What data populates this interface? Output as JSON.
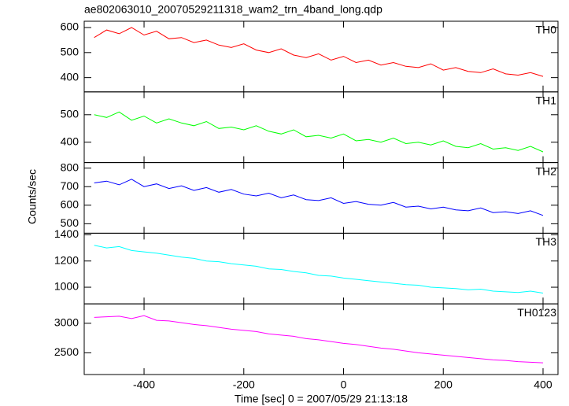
{
  "title": "ae802063010_20070529211318_wam2_trn_4band_long.qdp",
  "ylabel": "Counts/sec",
  "chart_data": [
    {
      "type": "line",
      "label": "TH0",
      "color": "#ff0000",
      "ylim": [
        343,
        625
      ],
      "yticks": [
        400,
        500,
        600
      ],
      "x": [
        -500,
        -475,
        -450,
        -425,
        -400,
        -375,
        -350,
        -325,
        -300,
        -275,
        -250,
        -225,
        -200,
        -175,
        -150,
        -125,
        -100,
        -75,
        -50,
        -25,
        0,
        25,
        50,
        75,
        100,
        125,
        150,
        175,
        200,
        225,
        250,
        275,
        300,
        325,
        350,
        375,
        400
      ],
      "values": [
        560,
        590,
        575,
        600,
        570,
        585,
        555,
        560,
        540,
        550,
        530,
        520,
        535,
        510,
        500,
        515,
        490,
        480,
        495,
        470,
        485,
        460,
        470,
        450,
        460,
        445,
        440,
        455,
        430,
        440,
        425,
        420,
        435,
        415,
        410,
        420,
        405
      ]
    },
    {
      "type": "line",
      "label": "TH1",
      "color": "#00ff00",
      "ylim": [
        326,
        583
      ],
      "yticks": [
        400,
        500
      ],
      "x": [
        -500,
        -475,
        -450,
        -425,
        -400,
        -375,
        -350,
        -325,
        -300,
        -275,
        -250,
        -225,
        -200,
        -175,
        -150,
        -125,
        -100,
        -75,
        -50,
        -25,
        0,
        25,
        50,
        75,
        100,
        125,
        150,
        175,
        200,
        225,
        250,
        275,
        300,
        325,
        350,
        375,
        400
      ],
      "values": [
        500,
        490,
        510,
        480,
        495,
        470,
        485,
        470,
        460,
        475,
        450,
        455,
        445,
        460,
        440,
        430,
        445,
        420,
        425,
        415,
        430,
        405,
        410,
        400,
        415,
        395,
        400,
        390,
        405,
        385,
        380,
        395,
        375,
        380,
        370,
        385,
        365
      ]
    },
    {
      "type": "line",
      "label": "TH2",
      "color": "#0000ff",
      "ylim": [
        449,
        830
      ],
      "yticks": [
        500,
        600,
        700,
        800
      ],
      "x": [
        -500,
        -475,
        -450,
        -425,
        -400,
        -375,
        -350,
        -325,
        -300,
        -275,
        -250,
        -225,
        -200,
        -175,
        -150,
        -125,
        -100,
        -75,
        -50,
        -25,
        0,
        25,
        50,
        75,
        100,
        125,
        150,
        175,
        200,
        225,
        250,
        275,
        300,
        325,
        350,
        375,
        400
      ],
      "values": [
        720,
        730,
        710,
        740,
        700,
        715,
        690,
        705,
        680,
        695,
        670,
        685,
        660,
        650,
        665,
        640,
        655,
        630,
        625,
        640,
        610,
        620,
        605,
        600,
        615,
        590,
        595,
        580,
        590,
        575,
        570,
        585,
        560,
        565,
        555,
        570,
        545
      ]
    },
    {
      "type": "line",
      "label": "TH3",
      "color": "#00ffff",
      "ylim": [
        873,
        1412
      ],
      "yticks": [
        1000,
        1200,
        1400
      ],
      "x": [
        -500,
        -475,
        -450,
        -425,
        -400,
        -375,
        -350,
        -325,
        -300,
        -275,
        -250,
        -225,
        -200,
        -175,
        -150,
        -125,
        -100,
        -75,
        -50,
        -25,
        0,
        25,
        50,
        75,
        100,
        125,
        150,
        175,
        200,
        225,
        250,
        275,
        300,
        325,
        350,
        375,
        400
      ],
      "values": [
        1320,
        1300,
        1310,
        1280,
        1270,
        1260,
        1245,
        1230,
        1220,
        1200,
        1195,
        1180,
        1170,
        1160,
        1140,
        1135,
        1120,
        1110,
        1090,
        1085,
        1070,
        1060,
        1050,
        1040,
        1030,
        1020,
        1015,
        1000,
        995,
        990,
        980,
        985,
        970,
        965,
        960,
        970,
        955
      ]
    },
    {
      "type": "line",
      "label": "TH0123",
      "color": "#ff00ff",
      "ylim": [
        2132,
        3329
      ],
      "yticks": [
        2500,
        3000
      ],
      "xlabel": "Time [sec] 0 = 2007/05/29 21:13:18",
      "xlim": [
        -520,
        430
      ],
      "xticks": [
        -400,
        -200,
        0,
        200,
        400
      ],
      "x": [
        -500,
        -475,
        -450,
        -425,
        -400,
        -375,
        -350,
        -325,
        -300,
        -275,
        -250,
        -225,
        -200,
        -175,
        -150,
        -125,
        -100,
        -75,
        -50,
        -25,
        0,
        25,
        50,
        75,
        100,
        125,
        150,
        175,
        200,
        225,
        250,
        275,
        300,
        325,
        350,
        375,
        400
      ],
      "values": [
        3100,
        3110,
        3120,
        3080,
        3130,
        3050,
        3040,
        3010,
        2980,
        2960,
        2930,
        2900,
        2880,
        2860,
        2820,
        2800,
        2780,
        2740,
        2720,
        2690,
        2660,
        2640,
        2610,
        2580,
        2560,
        2530,
        2500,
        2480,
        2460,
        2440,
        2420,
        2400,
        2380,
        2370,
        2350,
        2340,
        2330
      ]
    }
  ]
}
